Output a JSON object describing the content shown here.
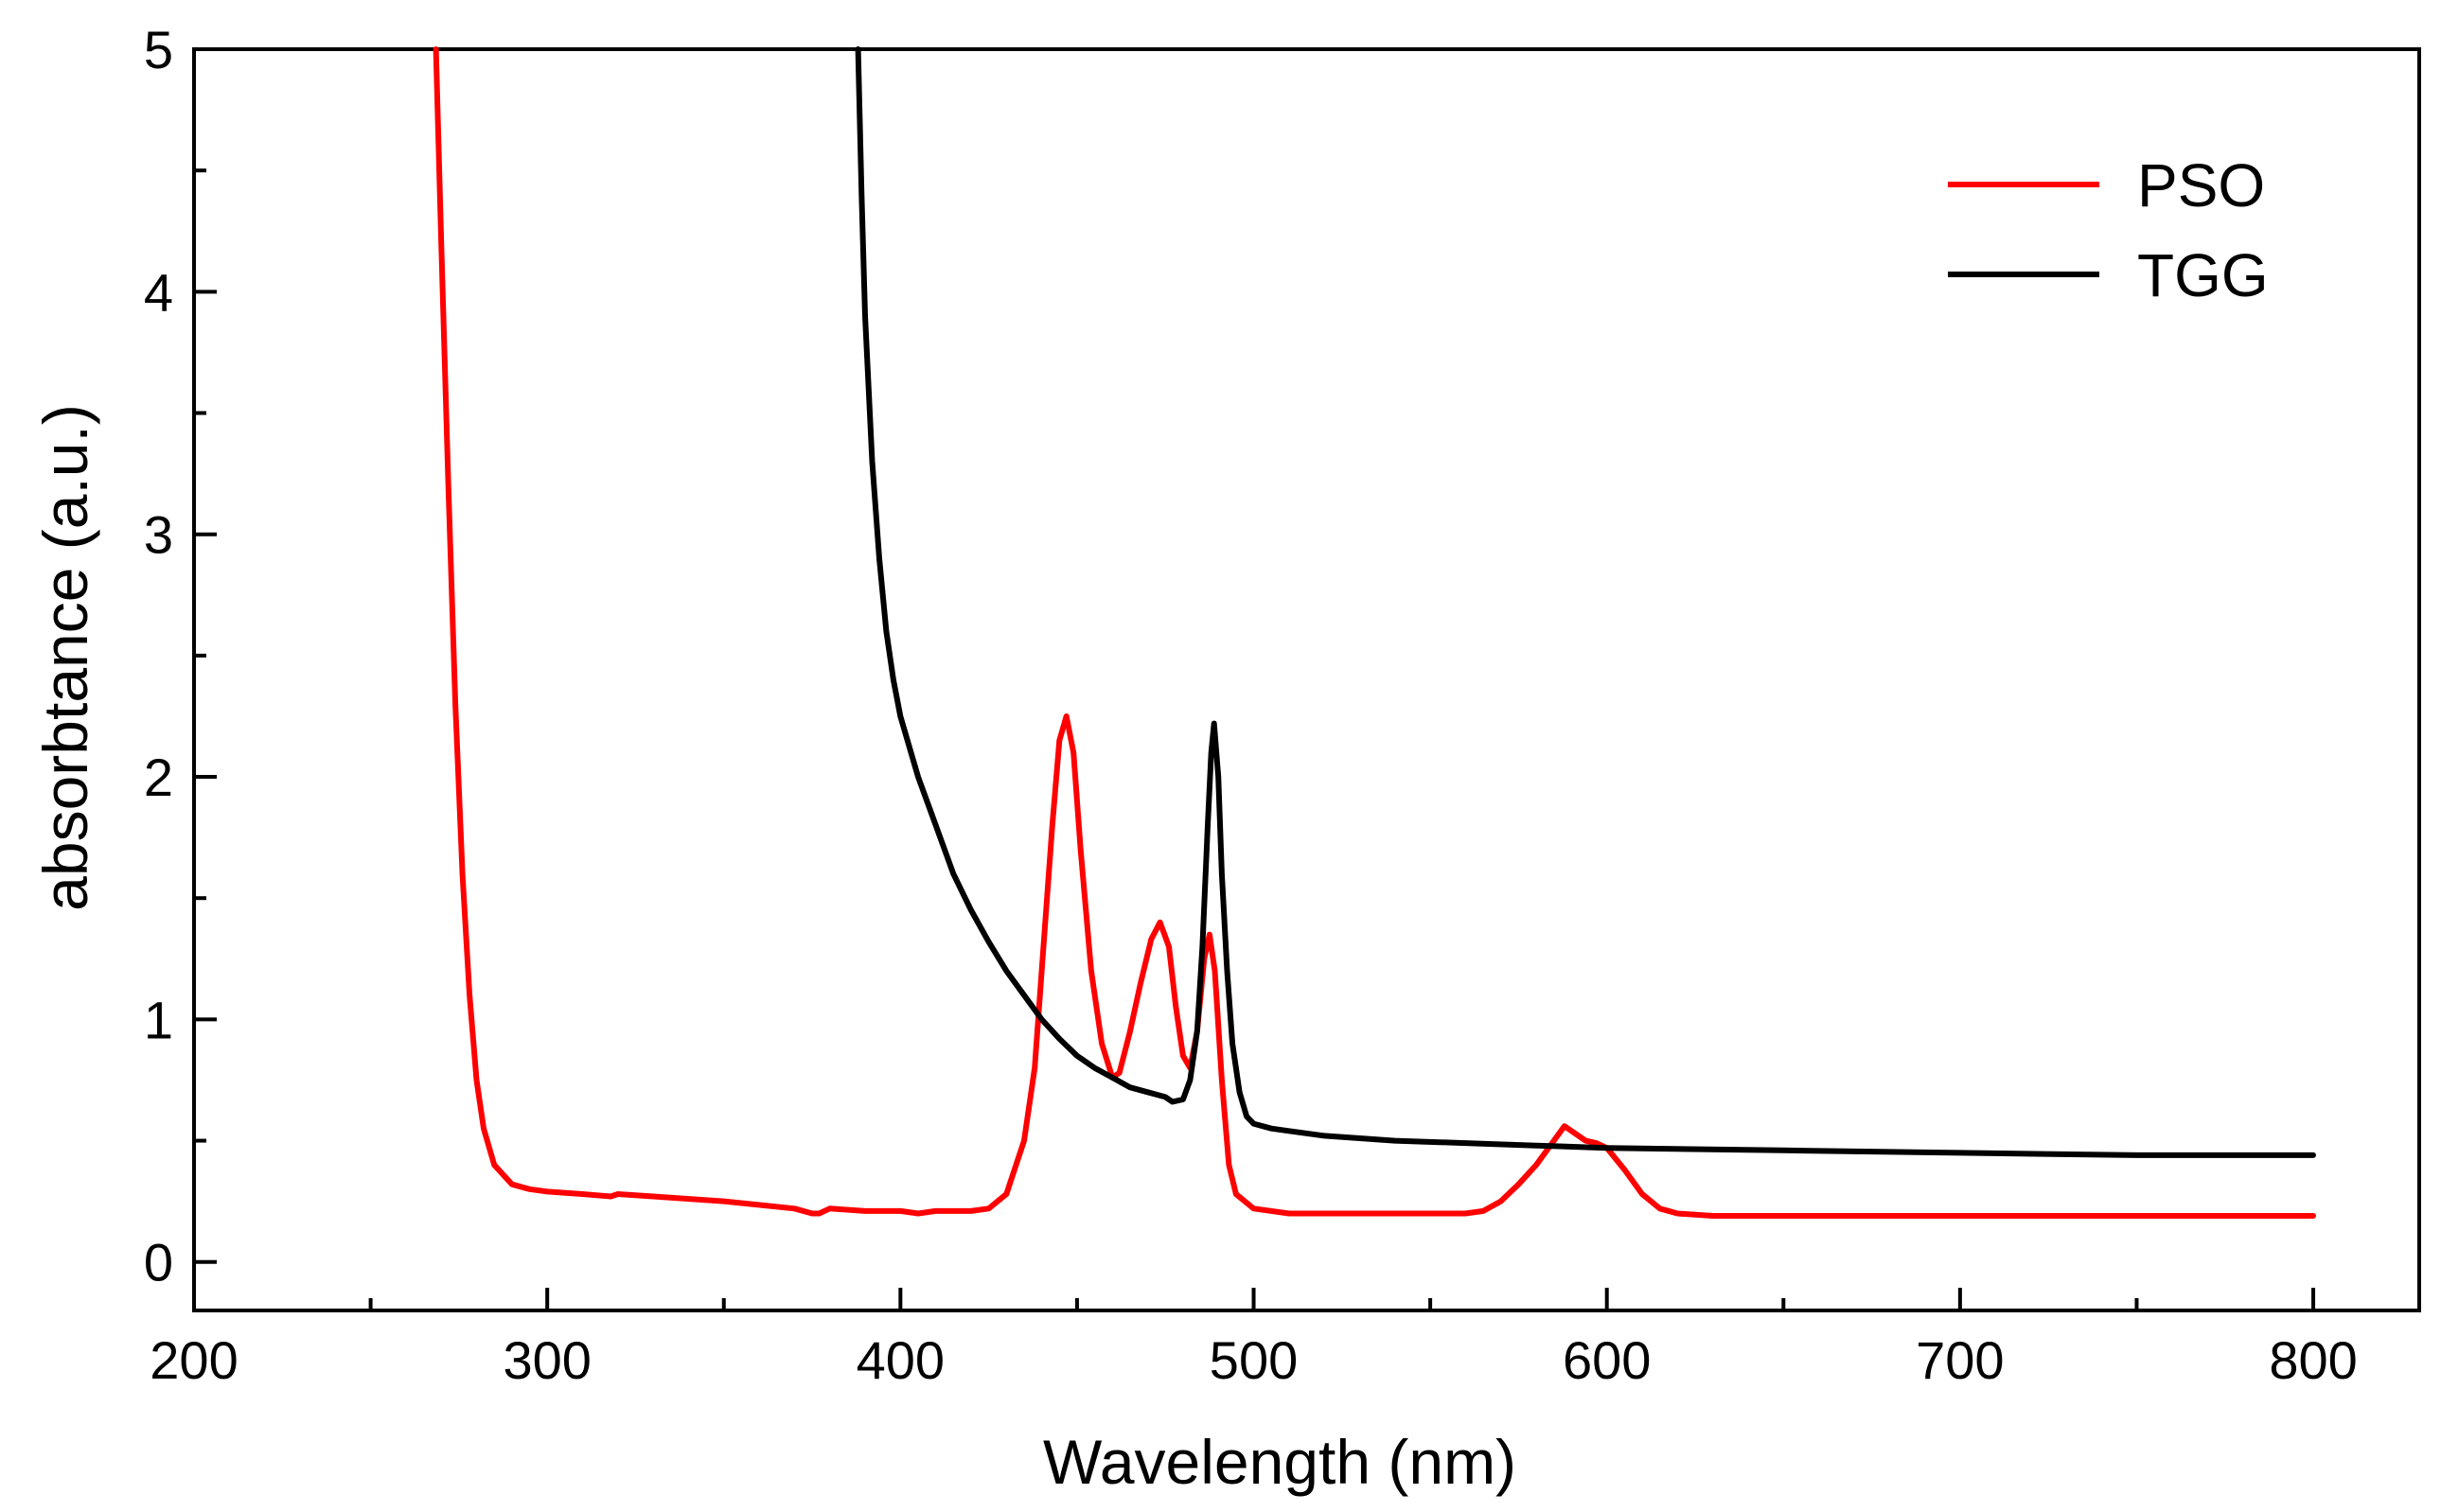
{
  "chart_data": {
    "type": "line",
    "title": "",
    "xlabel": "Wavelength (nm)",
    "ylabel": "absorbtance (a.u.)",
    "xlim": [
      200,
      830
    ],
    "ylim": [
      -0.2,
      5
    ],
    "x_ticks": [
      200,
      300,
      400,
      500,
      600,
      700,
      800
    ],
    "x_tick_labels": [
      "200",
      "300",
      "400",
      "500",
      "600",
      "700",
      "800"
    ],
    "x_minor_ticks": [
      250,
      350,
      450,
      550,
      650,
      750
    ],
    "y_ticks": [
      0,
      1,
      2,
      3,
      4,
      5
    ],
    "y_tick_labels": [
      "0",
      "1",
      "2",
      "3",
      "4",
      "5"
    ],
    "y_minor_ticks": [
      0.5,
      1.5,
      2.5,
      3.5,
      4.5
    ],
    "grid": false,
    "legend_position": "top-right",
    "series": [
      {
        "name": "PSO",
        "color": "#ff0000",
        "x": [
          268.5,
          270,
          272,
          274,
          276,
          278,
          280,
          282,
          285,
          290,
          295,
          300,
          310,
          318,
          320,
          330,
          350,
          370,
          375,
          377,
          380,
          390,
          400,
          405,
          410,
          420,
          425,
          430,
          435,
          438,
          440,
          443,
          445,
          447,
          449,
          451,
          454,
          457,
          460,
          462,
          465,
          468,
          471,
          473.5,
          476,
          478,
          480,
          482,
          484,
          486,
          487.5,
          489,
          491,
          493,
          495,
          500,
          510,
          520,
          540,
          560,
          565,
          570,
          575,
          580,
          585,
          588,
          591,
          594,
          597,
          600,
          605,
          610,
          615,
          620,
          630,
          650,
          700,
          750,
          800
        ],
        "y": [
          5.0,
          4.2,
          3.2,
          2.3,
          1.6,
          1.1,
          0.75,
          0.55,
          0.4,
          0.32,
          0.3,
          0.29,
          0.28,
          0.27,
          0.28,
          0.27,
          0.25,
          0.22,
          0.2,
          0.2,
          0.22,
          0.21,
          0.21,
          0.2,
          0.21,
          0.21,
          0.22,
          0.28,
          0.5,
          0.8,
          1.2,
          1.8,
          2.15,
          2.25,
          2.1,
          1.7,
          1.2,
          0.9,
          0.76,
          0.78,
          0.95,
          1.15,
          1.33,
          1.4,
          1.3,
          1.05,
          0.85,
          0.8,
          0.95,
          1.25,
          1.35,
          1.2,
          0.75,
          0.4,
          0.28,
          0.22,
          0.2,
          0.2,
          0.2,
          0.2,
          0.21,
          0.25,
          0.32,
          0.4,
          0.5,
          0.56,
          0.53,
          0.5,
          0.49,
          0.47,
          0.38,
          0.28,
          0.22,
          0.2,
          0.19,
          0.19,
          0.19,
          0.19,
          0.19
        ]
      },
      {
        "name": "TGG",
        "color": "#000000",
        "x": [
          388,
          389,
          390,
          392,
          394,
          396,
          398,
          400,
          405,
          410,
          415,
          420,
          425,
          430,
          435,
          440,
          445,
          450,
          455,
          460,
          465,
          470,
          475,
          477,
          480,
          482,
          484,
          485.5,
          487,
          488,
          488.8,
          490,
          491,
          492.5,
          494,
          496,
          498,
          500,
          505,
          510,
          520,
          540,
          560,
          580,
          600,
          650,
          700,
          750,
          800
        ],
        "y": [
          5.0,
          4.4,
          3.9,
          3.3,
          2.9,
          2.6,
          2.4,
          2.25,
          2.0,
          1.8,
          1.6,
          1.45,
          1.32,
          1.2,
          1.1,
          1.0,
          0.92,
          0.85,
          0.8,
          0.76,
          0.72,
          0.7,
          0.68,
          0.66,
          0.67,
          0.75,
          0.95,
          1.3,
          1.8,
          2.1,
          2.22,
          2.0,
          1.6,
          1.2,
          0.9,
          0.7,
          0.6,
          0.57,
          0.55,
          0.54,
          0.52,
          0.5,
          0.49,
          0.48,
          0.47,
          0.46,
          0.45,
          0.44,
          0.44
        ]
      }
    ]
  }
}
